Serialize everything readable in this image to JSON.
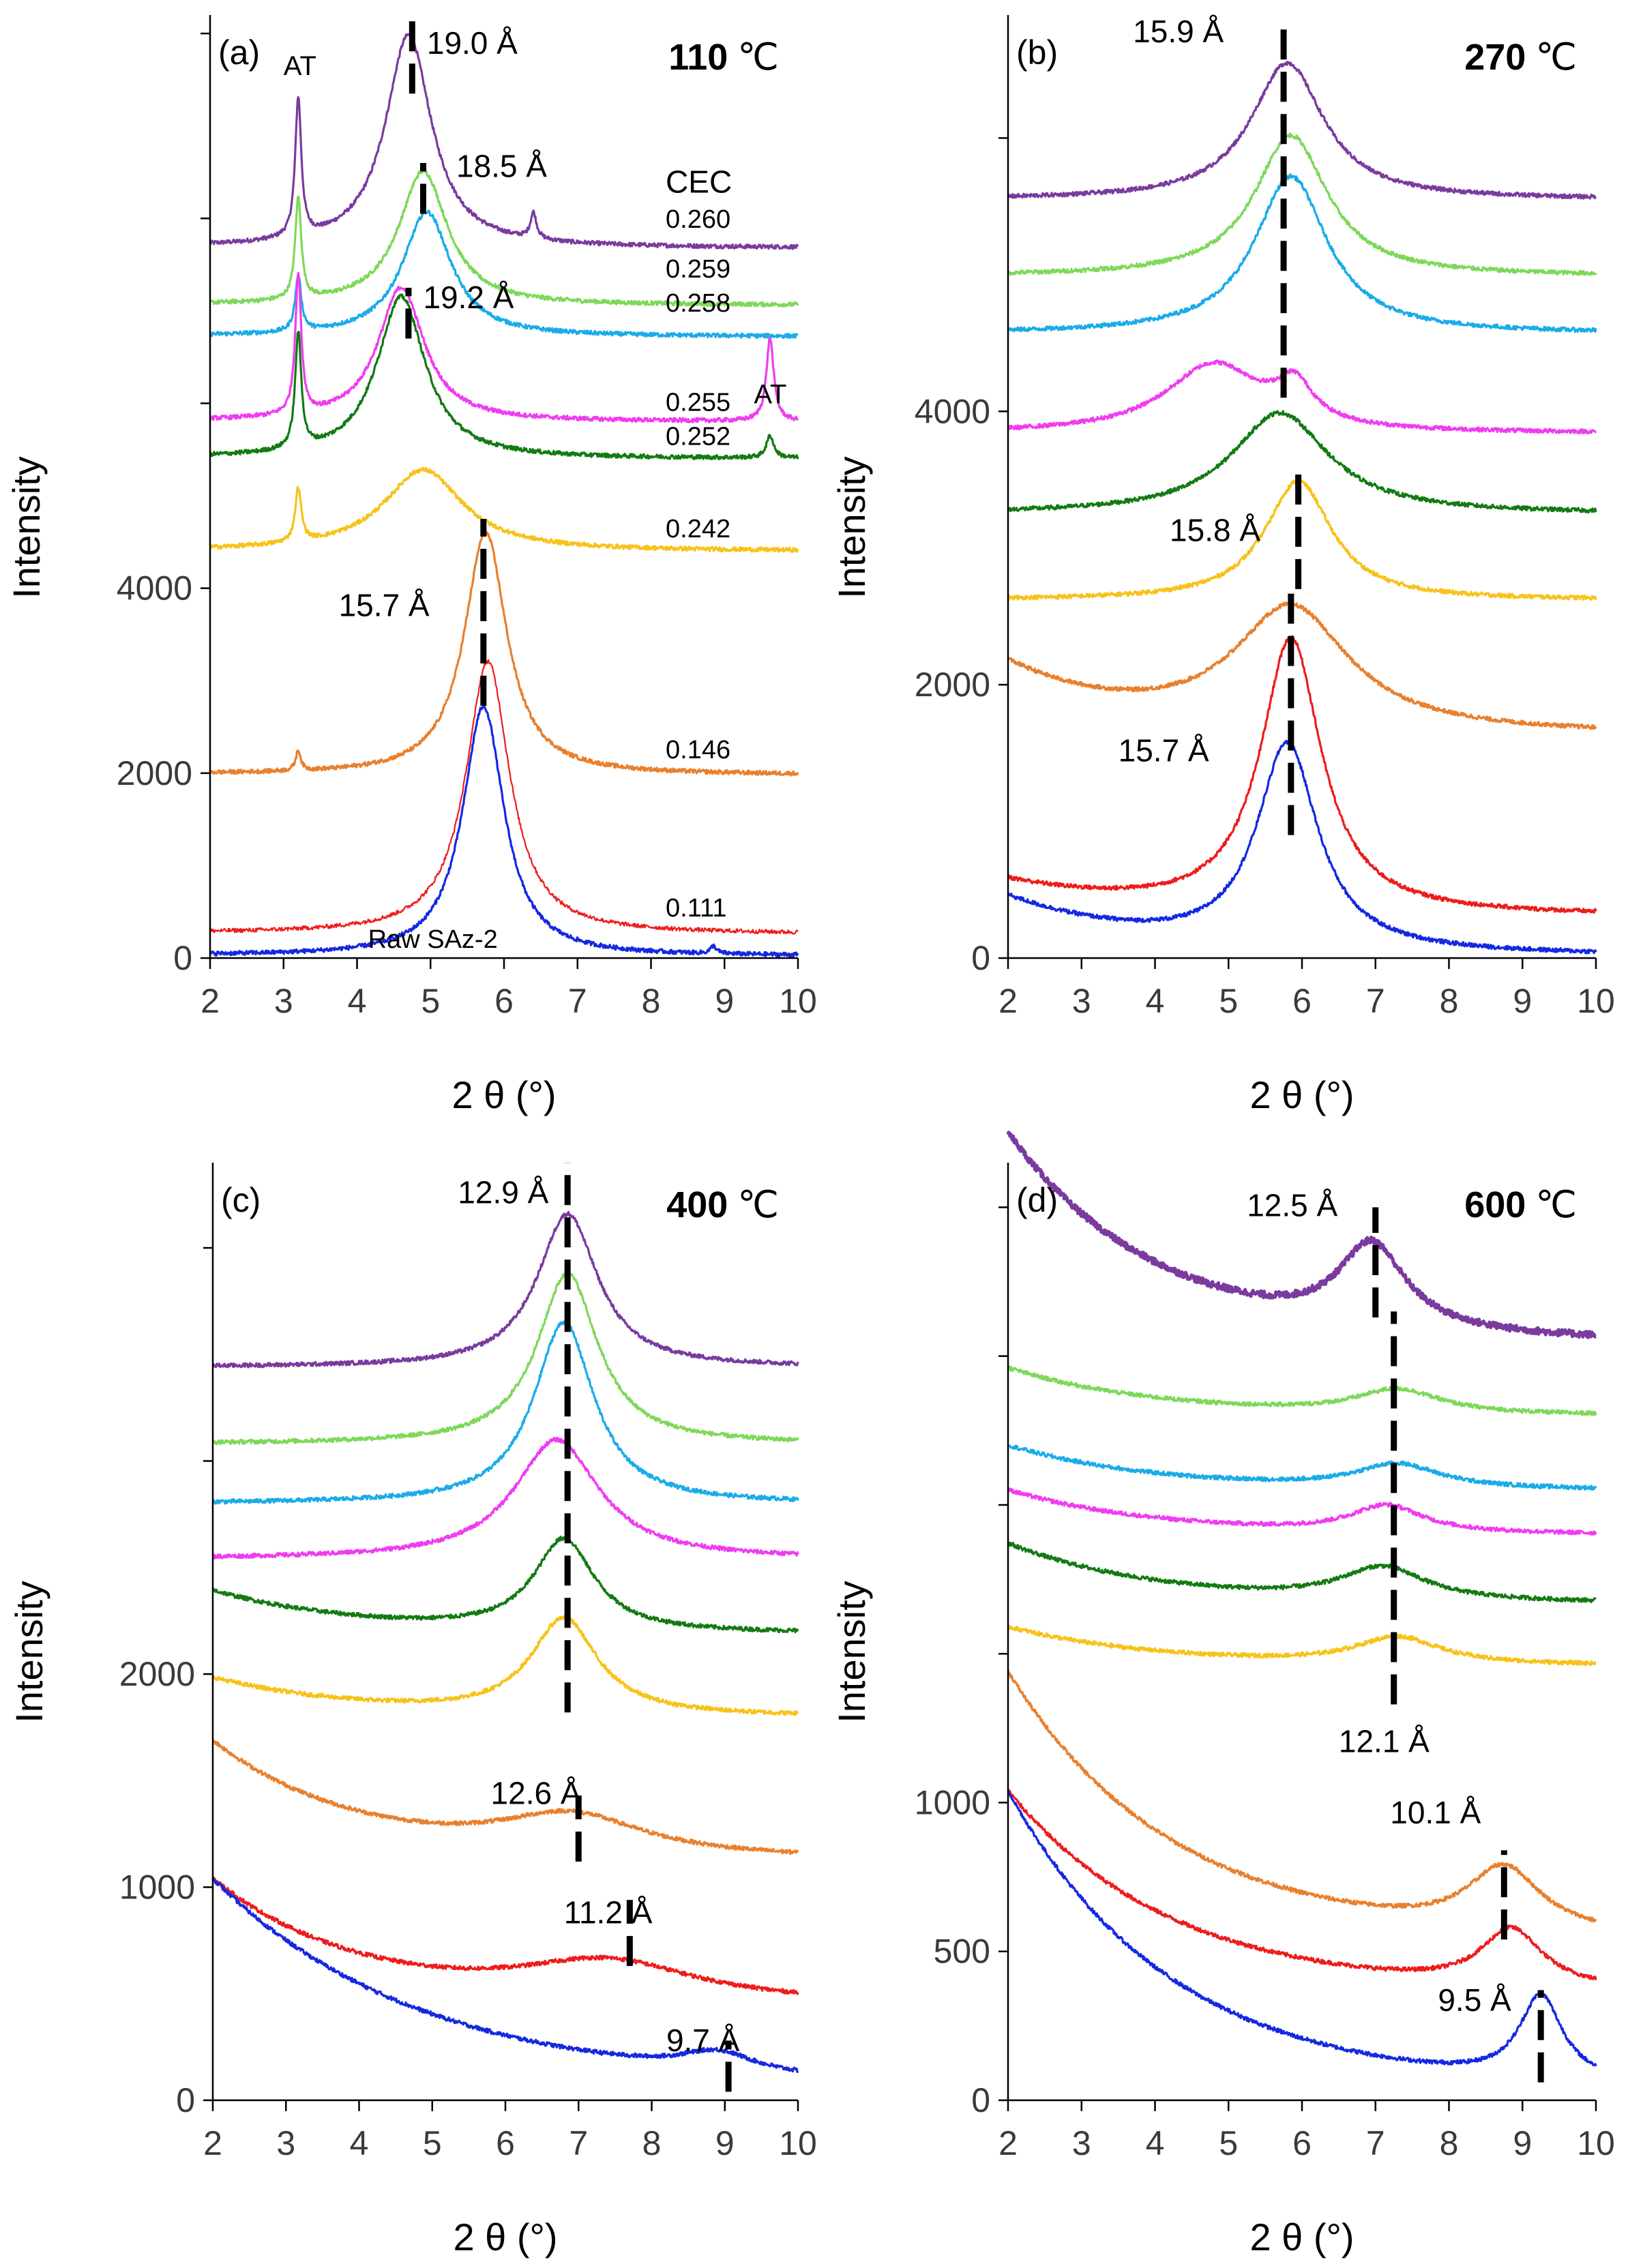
{
  "colors": {
    "purple": "#7a3a9e",
    "lightgreen": "#7ed85a",
    "cyan": "#1aabe8",
    "magenta": "#f03cf0",
    "darkgreen": "#137a13",
    "gold": "#f7c21a",
    "orange": "#e8802e",
    "red": "#ee1c1c",
    "blue": "#1528e0"
  },
  "chart_data": [
    {
      "type": "line",
      "panel": "(a)",
      "temperature": "110",
      "unit": "℃",
      "xlabel": "2 θ (°)",
      "ylabel": "Intensity",
      "xlim": [
        2,
        10
      ],
      "ylim": [
        0,
        10200
      ],
      "x_ticks": [
        "2",
        "3",
        "4",
        "5",
        "6",
        "7",
        "8",
        "9",
        "10"
      ],
      "y_ticks": [
        {
          "value": 0,
          "label": "0"
        },
        {
          "value": 2000,
          "label": "2000"
        },
        {
          "value": 4000,
          "label": "4000"
        }
      ],
      "cec_header": "CEC",
      "series": [
        {
          "name": "0.260",
          "color": "purple",
          "baseline": 7680,
          "peaks": [
            [
              3.2,
              1500,
              0.05
            ],
            [
              4.7,
              2300,
              0.38
            ],
            [
              6.4,
              280,
              0.05
            ]
          ],
          "d": [
            8,
            3.05,
            -0.35
          ]
        },
        {
          "name": "0.259",
          "color": "lightgreen",
          "baseline": 7060,
          "peaks": [
            [
              3.2,
              1100,
              0.05
            ],
            [
              4.9,
              1450,
              0.4
            ]
          ],
          "d": [
            4,
            3.0,
            -0.3
          ]
        },
        {
          "name": "0.258",
          "color": "cyan",
          "baseline": 6720,
          "peaks": [
            [
              3.2,
              600,
              0.05
            ],
            [
              4.95,
              1350,
              0.4
            ]
          ],
          "d": [
            4,
            3.0,
            -0.3
          ]
        },
        {
          "name": "0.255",
          "color": "magenta",
          "baseline": 5800,
          "peaks": [
            [
              3.2,
              1500,
              0.05
            ],
            [
              4.6,
              1450,
              0.38
            ],
            [
              9.62,
              900,
              0.06
            ]
          ],
          "d": [
            8,
            3.05,
            -0.3
          ]
        },
        {
          "name": "0.252",
          "color": "darkgreen",
          "baseline": 5400,
          "peaks": [
            [
              3.2,
              1250,
              0.05
            ],
            [
              4.6,
              1750,
              0.4
            ],
            [
              9.62,
              240,
              0.06
            ]
          ],
          "d": [
            8,
            3.05,
            -0.3
          ]
        },
        {
          "name": "0.242",
          "color": "gold",
          "baseline": 4400,
          "peaks": [
            [
              3.2,
              580,
              0.05
            ],
            [
              4.9,
              880,
              0.65
            ]
          ],
          "d": [
            4,
            3.0,
            -0.3
          ]
        },
        {
          "name": "0.146",
          "color": "orange",
          "baseline": 1980,
          "peaks": [
            [
              3.2,
              220,
              0.04
            ],
            [
              5.75,
              2620,
              0.35
            ]
          ],
          "d": [
            8,
            3.2,
            -0.45
          ]
        },
        {
          "name": "0.111",
          "color": "red",
          "baseline": 260,
          "peaks": [
            [
              5.78,
              2950,
              0.36
            ]
          ],
          "d": [
            8,
            3.2,
            -0.45
          ],
          "thin": true
        },
        {
          "name": "Raw SAz-2",
          "color": "blue",
          "baseline": 20,
          "peaks": [
            [
              5.72,
              2700,
              0.34
            ],
            [
              8.85,
              80,
              0.05
            ]
          ],
          "d": [
            8,
            3.2,
            -0.45
          ]
        }
      ],
      "series_labels": [
        {
          "text": "0.260",
          "x": 8.2,
          "y": 7900
        },
        {
          "text": "0.259",
          "x": 8.2,
          "y": 7360
        },
        {
          "text": "0.258",
          "x": 8.2,
          "y": 6990
        },
        {
          "text": "0.255",
          "x": 8.2,
          "y": 5920
        },
        {
          "text": "0.252",
          "x": 8.2,
          "y": 5550
        },
        {
          "text": "0.242",
          "x": 8.2,
          "y": 4550
        },
        {
          "text": "0.146",
          "x": 8.2,
          "y": 2160
        },
        {
          "text": "0.111",
          "x": 8.2,
          "y": 450
        },
        {
          "text": "Raw SAz-2",
          "x": 4.15,
          "y": 110,
          "color": "blue"
        }
      ],
      "annotations": [
        {
          "text": "19.0 Å",
          "x": 4.95,
          "y": 9780
        },
        {
          "text": "18.5 Å",
          "x": 5.35,
          "y": 8450
        },
        {
          "text": "19.2 Å",
          "x": 4.9,
          "y": 7030
        },
        {
          "text": "15.7 Å",
          "x": 3.75,
          "y": 3700
        },
        {
          "text": "AT",
          "x": 3.0,
          "y": 9550,
          "small": true
        },
        {
          "text": "AT",
          "x": 9.4,
          "y": 6000,
          "small": true
        },
        {
          "text": "CEC",
          "x": 8.2,
          "y": 8280
        }
      ],
      "d_markers": [
        {
          "x": 4.75,
          "y1": 9350,
          "y2": 10200
        },
        {
          "x": 4.9,
          "y1": 8050,
          "y2": 8600
        },
        {
          "x": 4.7,
          "y1": 6700,
          "y2": 7250
        },
        {
          "x": 5.72,
          "y1": 2730,
          "y2": 4750
        }
      ]
    },
    {
      "type": "line",
      "panel": "(b)",
      "temperature": "270",
      "unit": "℃",
      "xlabel": "2 θ (°)",
      "ylabel": "Intensity",
      "xlim": [
        2,
        10
      ],
      "ylim": [
        0,
        6900
      ],
      "x_ticks": [
        "2",
        "3",
        "4",
        "5",
        "6",
        "7",
        "8",
        "9",
        "10"
      ],
      "y_ticks": [
        {
          "value": 0,
          "label": "0"
        },
        {
          "value": 2000,
          "label": "2000"
        },
        {
          "value": 4000,
          "label": "4000"
        }
      ],
      "series": [
        {
          "name": "0.260",
          "color": "purple",
          "baseline": 5550,
          "peaks": [
            [
              5.8,
              1000,
              0.6
            ]
          ],
          "d": [
            0,
            3,
            0
          ]
        },
        {
          "name": "0.259",
          "color": "lightgreen",
          "baseline": 4990,
          "peaks": [
            [
              5.85,
              1030,
              0.6
            ]
          ],
          "d": [
            0,
            3,
            0
          ]
        },
        {
          "name": "0.258",
          "color": "cyan",
          "baseline": 4570,
          "peaks": [
            [
              5.85,
              1150,
              0.6
            ]
          ],
          "d": [
            0,
            3,
            0
          ]
        },
        {
          "name": "0.255",
          "color": "magenta",
          "baseline": 3840,
          "peaks": [
            [
              4.8,
              500,
              0.8
            ],
            [
              5.9,
              280,
              0.3
            ]
          ],
          "d": [
            0,
            3,
            0
          ]
        },
        {
          "name": "0.252",
          "color": "darkgreen",
          "baseline": 3250,
          "peaks": [
            [
              5.7,
              740,
              0.8
            ]
          ],
          "d": [
            0,
            3,
            0
          ]
        },
        {
          "name": "0.242",
          "color": "gold",
          "baseline": 2620,
          "peaks": [
            [
              5.95,
              870,
              0.55
            ]
          ],
          "d": [
            0,
            3,
            0
          ]
        },
        {
          "name": "0.146",
          "color": "orange",
          "baseline": 1640,
          "peaks": [
            [
              5.85,
              900,
              0.95
            ]
          ],
          "d": [
            500,
            2.4,
            -0.6
          ]
        },
        {
          "name": "0.111",
          "color": "red",
          "baseline": 310,
          "peaks": [
            [
              5.85,
              2000,
              0.5
            ]
          ],
          "d": [
            250,
            2.5,
            -0.5
          ]
        },
        {
          "name": "Raw SAz-2",
          "color": "blue",
          "baseline": 20,
          "peaks": [
            [
              5.8,
              1500,
              0.5
            ]
          ],
          "d": [
            420,
            2.5,
            -0.5
          ]
        }
      ],
      "annotations": [
        {
          "text": "15.9 Å",
          "x": 3.7,
          "y": 6700
        },
        {
          "text": "15.8 Å",
          "x": 4.2,
          "y": 3050
        },
        {
          "text": "15.7 Å",
          "x": 3.5,
          "y": 1440
        }
      ],
      "d_markers": [
        {
          "x": 5.75,
          "y1": 4100,
          "y2": 6850
        },
        {
          "x": 5.95,
          "y1": 2700,
          "y2": 3600
        },
        {
          "x": 5.85,
          "y1": 900,
          "y2": 2700
        }
      ]
    },
    {
      "type": "line",
      "panel": "(c)",
      "temperature": "400",
      "unit": "℃",
      "xlabel": "2 θ (°)",
      "ylabel": "Intensity",
      "xlim": [
        2,
        10
      ],
      "ylim": [
        0,
        4400
      ],
      "x_ticks": [
        "2",
        "3",
        "4",
        "5",
        "6",
        "7",
        "8",
        "9",
        "10"
      ],
      "y_ticks": [
        {
          "value": 0,
          "label": "0"
        },
        {
          "value": 1000,
          "label": "1000"
        },
        {
          "value": 2000,
          "label": "2000"
        }
      ],
      "series": [
        {
          "name": "0.260",
          "color": "purple",
          "baseline": 3440,
          "peaks": [
            [
              6.85,
              720,
              0.5
            ]
          ],
          "d": [
            0,
            3,
            0
          ]
        },
        {
          "name": "0.259",
          "color": "lightgreen",
          "baseline": 3080,
          "peaks": [
            [
              6.85,
              800,
              0.5
            ]
          ],
          "d": [
            0,
            3,
            0
          ]
        },
        {
          "name": "0.258",
          "color": "cyan",
          "baseline": 2800,
          "peaks": [
            [
              6.8,
              850,
              0.5
            ]
          ],
          "d": [
            0,
            3,
            0
          ]
        },
        {
          "name": "0.255",
          "color": "magenta",
          "baseline": 2540,
          "peaks": [
            [
              6.7,
              560,
              0.7
            ]
          ],
          "d": [
            0,
            3,
            0
          ]
        },
        {
          "name": "0.252",
          "color": "darkgreen",
          "baseline": 2190,
          "peaks": [
            [
              6.8,
              430,
              0.5
            ]
          ],
          "d": [
            200,
            2.6,
            -0.5
          ]
        },
        {
          "name": "0.242",
          "color": "gold",
          "baseline": 1800,
          "peaks": [
            [
              6.8,
              450,
              0.55
            ]
          ],
          "d": [
            180,
            2.6,
            -0.5
          ]
        },
        {
          "name": "0.146",
          "color": "orange",
          "baseline": 1130,
          "peaks": [
            [
              6.9,
              180,
              1.2
            ]
          ],
          "d": [
            550,
            2.4,
            -0.5
          ]
        },
        {
          "name": "0.111",
          "color": "red",
          "baseline": 450,
          "peaks": [
            [
              7.4,
              180,
              1.5
            ]
          ],
          "d": [
            580,
            2.4,
            -0.5
          ]
        },
        {
          "name": "Raw SAz-2",
          "color": "blue",
          "baseline": 60,
          "peaks": [
            [
              8.9,
              90,
              0.6
            ]
          ],
          "d": [
            980,
            2.7,
            -0.35
          ]
        }
      ],
      "annotations": [
        {
          "text": "12.9 Å",
          "x": 5.35,
          "y": 4210
        },
        {
          "text": "12.6 Å",
          "x": 5.8,
          "y": 1390
        },
        {
          "text": "11.2 Å",
          "x": 6.8,
          "y": 830
        },
        {
          "text": "9.7 Å",
          "x": 8.2,
          "y": 230
        }
      ],
      "d_markers": [
        {
          "x": 6.85,
          "y1": 1820,
          "y2": 4400
        },
        {
          "x": 7.0,
          "y1": 1120,
          "y2": 1430
        },
        {
          "x": 7.7,
          "y1": 630,
          "y2": 940
        },
        {
          "x": 9.05,
          "y1": 40,
          "y2": 280
        }
      ]
    },
    {
      "type": "line",
      "panel": "(d)",
      "temperature": "600",
      "unit": "℃",
      "xlabel": "2 θ (°)",
      "ylabel": "Intensity",
      "xlim": [
        2,
        10
      ],
      "ylim": [
        0,
        3150
      ],
      "x_ticks": [
        "2",
        "3",
        "4",
        "5",
        "6",
        "7",
        "8",
        "9",
        "10"
      ],
      "y_ticks": [
        {
          "value": 0,
          "label": "0"
        },
        {
          "value": 500,
          "label": "500"
        },
        {
          "value": 1000,
          "label": "1000"
        }
      ],
      "series": [
        {
          "name": "0.260",
          "color": "purple",
          "baseline": 2550,
          "peaks": [
            [
              6.95,
              280,
              0.55
            ]
          ],
          "d": [
            700,
            2.8,
            -0.5
          ],
          "thick": true
        },
        {
          "name": "0.259",
          "color": "lightgreen",
          "baseline": 2300,
          "peaks": [
            [
              7.3,
              80,
              0.7
            ]
          ],
          "d": [
            160,
            2.4,
            -0.5
          ]
        },
        {
          "name": "0.258",
          "color": "cyan",
          "baseline": 2050,
          "peaks": [
            [
              7.3,
              80,
              0.7
            ]
          ],
          "d": [
            150,
            2.4,
            -0.5
          ]
        },
        {
          "name": "0.255",
          "color": "magenta",
          "baseline": 1900,
          "peaks": [
            [
              7.15,
              90,
              0.6
            ]
          ],
          "d": [
            150,
            2.4,
            -0.5
          ]
        },
        {
          "name": "0.252",
          "color": "darkgreen",
          "baseline": 1670,
          "peaks": [
            [
              7.1,
              110,
              0.7
            ]
          ],
          "d": [
            200,
            2.4,
            -0.5
          ]
        },
        {
          "name": "0.242",
          "color": "gold",
          "baseline": 1460,
          "peaks": [
            [
              7.3,
              90,
              0.7
            ]
          ],
          "d": [
            130,
            2.4,
            -0.5
          ]
        },
        {
          "name": "0.146",
          "color": "orange",
          "baseline": 540,
          "peaks": [
            [
              8.75,
              210,
              0.6
            ]
          ],
          "d": [
            900,
            3.0,
            -0.45
          ]
        },
        {
          "name": "0.111",
          "color": "red",
          "baseline": 360,
          "peaks": [
            [
              8.85,
              190,
              0.5
            ]
          ],
          "d": [
            680,
            2.6,
            -0.45
          ]
        },
        {
          "name": "Raw SAz-2",
          "color": "blue",
          "baseline": 40,
          "peaks": [
            [
              9.25,
              280,
              0.35
            ]
          ],
          "d": [
            1000,
            2.6,
            -0.45
          ]
        }
      ],
      "annotations": [
        {
          "text": "12.5 Å",
          "x": 5.25,
          "y": 2970
        },
        {
          "text": "12.1 Å",
          "x": 6.5,
          "y": 1170
        },
        {
          "text": "10.1 Å",
          "x": 7.2,
          "y": 930
        },
        {
          "text": "9.5 Å",
          "x": 7.85,
          "y": 300
        }
      ],
      "d_markers": [
        {
          "x": 7.0,
          "y1": 2630,
          "y2": 3000
        },
        {
          "x": 7.25,
          "y1": 1330,
          "y2": 2650
        },
        {
          "x": 8.75,
          "y1": 540,
          "y2": 840
        },
        {
          "x": 9.25,
          "y1": 60,
          "y2": 370
        }
      ]
    }
  ]
}
